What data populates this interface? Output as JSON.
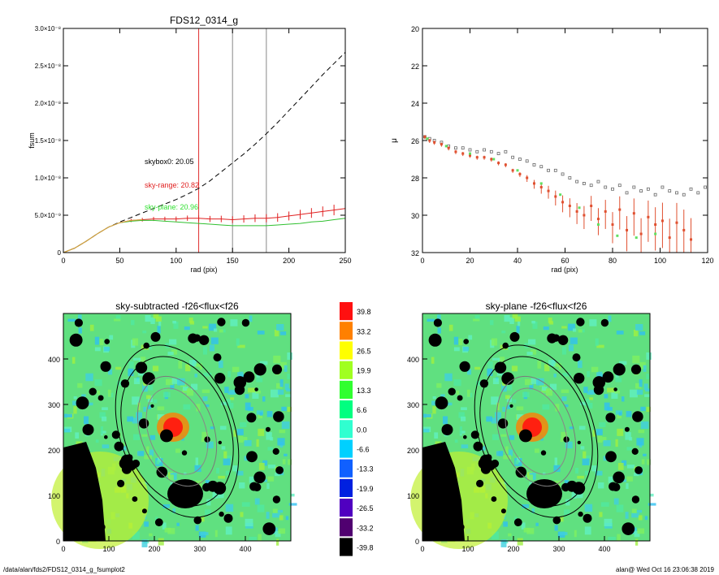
{
  "chart_data": [
    {
      "type": "line",
      "title": "FDS12_0314_g",
      "xlabel": "rad (pix)",
      "ylabel": "fsum",
      "xlim": [
        0,
        250
      ],
      "ylim": [
        0,
        3e-08
      ],
      "x_ticks": [
        "0",
        "50",
        "100",
        "150",
        "200",
        "250"
      ],
      "y_ticks": [
        "0",
        "5.0×10⁻⁹",
        "1.0×10⁻⁸",
        "1.5×10⁻⁸",
        "2.0×10⁻⁸",
        "2.5×10⁻⁸",
        "3.0×10⁻⁸"
      ],
      "vlines": [
        {
          "x": 120,
          "color": "#e03030"
        },
        {
          "x": 150,
          "color": "#888888"
        },
        {
          "x": 180,
          "color": "#888888"
        }
      ],
      "annotations": [
        {
          "text": "skybox0: 20.05",
          "color": "#000000"
        },
        {
          "text": "sky-range: 20.82",
          "color": "#e02020"
        },
        {
          "text": "sky-plane: 20.96",
          "color": "#30e030"
        }
      ],
      "series": [
        {
          "style": "dashed",
          "color": "#000000",
          "x": [
            0,
            10,
            20,
            30,
            40,
            50,
            60,
            70,
            80,
            90,
            100,
            110,
            120,
            130,
            140,
            150,
            160,
            170,
            180,
            190,
            200,
            210,
            220,
            230,
            240,
            250
          ],
          "y": [
            0,
            6e-10,
            1.5e-09,
            2.5e-09,
            3.4e-09,
            4.1e-09,
            4.7e-09,
            5.3e-09,
            5.9e-09,
            6.5e-09,
            7.1e-09,
            7.8e-09,
            8.6e-09,
            9.6e-09,
            1.08e-08,
            1.2e-08,
            1.32e-08,
            1.45e-08,
            1.59e-08,
            1.74e-08,
            1.9e-08,
            2.06e-08,
            2.22e-08,
            2.38e-08,
            2.53e-08,
            2.68e-08
          ]
        },
        {
          "style": "errorbar",
          "color": "#e02020",
          "x": [
            0,
            10,
            20,
            30,
            40,
            50,
            60,
            70,
            80,
            90,
            100,
            110,
            120,
            130,
            140,
            150,
            160,
            170,
            180,
            190,
            200,
            210,
            220,
            230,
            240,
            250
          ],
          "y": [
            0,
            6e-10,
            1.5e-09,
            2.5e-09,
            3.4e-09,
            4e-09,
            4.3e-09,
            4.4e-09,
            4.5e-09,
            4.5e-09,
            4.5e-09,
            4.6e-09,
            4.6e-09,
            4.5e-09,
            4.5e-09,
            4.4e-09,
            4.5e-09,
            4.6e-09,
            4.6e-09,
            4.7e-09,
            4.9e-09,
            5.1e-09,
            5.3e-09,
            5.5e-09,
            5.7e-09,
            5.9e-09
          ]
        },
        {
          "style": "solid",
          "color": "#30c030",
          "x": [
            0,
            10,
            20,
            30,
            40,
            50,
            60,
            70,
            80,
            90,
            100,
            110,
            120,
            130,
            140,
            150,
            160,
            170,
            180,
            190,
            200,
            210,
            220,
            230,
            240,
            250
          ],
          "y": [
            0,
            6e-10,
            1.5e-09,
            2.5e-09,
            3.4e-09,
            4e-09,
            4.2e-09,
            4.3e-09,
            4.3e-09,
            4.2e-09,
            4.1e-09,
            4e-09,
            3.9e-09,
            3.8e-09,
            3.7e-09,
            3.6e-09,
            3.6e-09,
            3.6e-09,
            3.6e-09,
            3.7e-09,
            3.8e-09,
            3.9e-09,
            4.1e-09,
            4.2e-09,
            4.4e-09,
            4.6e-09
          ]
        },
        {
          "style": "solid",
          "color": "#e0a040",
          "x": [
            0,
            10,
            20,
            30,
            40,
            50,
            60,
            70
          ],
          "y": [
            0,
            6e-10,
            1.5e-09,
            2.5e-09,
            3.4e-09,
            4e-09,
            4.3e-09,
            4.4e-09
          ]
        }
      ]
    },
    {
      "type": "scatter",
      "title": "",
      "xlabel": "rad (pix)",
      "ylabel": "μ",
      "xlim": [
        0,
        120
      ],
      "ylim": [
        32,
        20
      ],
      "x_ticks": [
        "0",
        "20",
        "40",
        "60",
        "80",
        "100",
        "120"
      ],
      "y_ticks": [
        "20",
        "22",
        "24",
        "26",
        "28",
        "30",
        "32"
      ],
      "series": [
        {
          "marker": "square-open",
          "color": "#666666",
          "x": [
            1,
            3,
            5,
            8,
            11,
            14,
            17,
            20,
            23,
            26,
            29,
            32,
            35,
            38,
            41,
            44,
            47,
            50,
            53,
            56,
            59,
            62,
            65,
            68,
            71,
            74,
            77,
            80,
            83,
            86,
            89,
            92,
            95,
            98,
            101,
            104,
            107,
            110,
            113,
            116,
            119
          ],
          "y": [
            25.8,
            25.9,
            26.0,
            26.1,
            26.3,
            26.4,
            26.4,
            26.5,
            26.6,
            26.5,
            26.6,
            26.7,
            26.6,
            26.9,
            27.0,
            27.1,
            27.3,
            27.4,
            27.6,
            27.6,
            27.8,
            28.0,
            28.2,
            28.3,
            28.4,
            28.2,
            28.5,
            28.6,
            28.4,
            28.8,
            28.5,
            28.7,
            28.6,
            28.9,
            28.5,
            28.7,
            28.8,
            28.9,
            28.6,
            28.8,
            28.5
          ]
        },
        {
          "marker": "square-filled",
          "color": "#e05030",
          "errorbars": true,
          "x": [
            1,
            3,
            5,
            8,
            11,
            14,
            17,
            20,
            23,
            26,
            29,
            32,
            35,
            38,
            41,
            44,
            47,
            50,
            53,
            56,
            59,
            62,
            65,
            68,
            71,
            74,
            77,
            80,
            83,
            86,
            89,
            92,
            95,
            98,
            101,
            104,
            107,
            110,
            113
          ],
          "y": [
            25.8,
            26.0,
            26.1,
            26.2,
            26.4,
            26.6,
            26.7,
            26.8,
            26.9,
            26.9,
            27.0,
            27.2,
            27.3,
            27.6,
            27.8,
            28.0,
            28.3,
            28.5,
            28.7,
            29.0,
            29.3,
            29.5,
            29.8,
            30.0,
            29.5,
            30.2,
            29.8,
            30.5,
            29.7,
            30.8,
            29.9,
            31.0,
            30.1,
            30.5,
            30.3,
            31.2,
            30.4,
            30.8,
            31.3
          ]
        },
        {
          "marker": "square-filled",
          "color": "#60e060",
          "x": [
            2,
            10,
            20,
            30,
            40,
            50,
            58,
            66,
            74,
            82,
            90,
            98
          ],
          "y": [
            25.9,
            26.3,
            26.7,
            27.0,
            27.6,
            28.3,
            28.9,
            29.6,
            30.5,
            31.1,
            31.2,
            31.0
          ]
        }
      ]
    },
    {
      "type": "heatmap",
      "title": "sky-subtracted -f26<flux<f26",
      "xlim": [
        0,
        500
      ],
      "ylim": [
        0,
        500
      ],
      "x_ticks": [
        "0",
        "100",
        "200",
        "300",
        "400"
      ],
      "y_ticks": [
        "0",
        "100",
        "200",
        "300",
        "400"
      ]
    },
    {
      "type": "heatmap",
      "title": "sky-plane -f26<flux<f26",
      "xlim": [
        0,
        500
      ],
      "ylim": [
        0,
        500
      ],
      "x_ticks": [
        "0",
        "100",
        "200",
        "300",
        "400"
      ],
      "y_ticks": [
        "0",
        "100",
        "200",
        "300",
        "400"
      ]
    }
  ],
  "colorbar": {
    "labels": [
      "39.8",
      "33.2",
      "26.5",
      "19.9",
      "13.3",
      "6.6",
      "0.0",
      "-6.6",
      "-13.3",
      "-19.9",
      "-26.5",
      "-33.2",
      "-39.8"
    ],
    "colors": [
      "#ff1010",
      "#ff8000",
      "#ffff00",
      "#a0ff20",
      "#30ff30",
      "#00ff80",
      "#30ffd0",
      "#00d0ff",
      "#1060ff",
      "#0020e0",
      "#5000c0",
      "#500070",
      "#000000"
    ]
  },
  "footer": {
    "left": "/data/alan/fds2/FDS12_0314_g_fsumplot2",
    "right": "alan@  Wed Oct 16 23:06:38 2019"
  }
}
